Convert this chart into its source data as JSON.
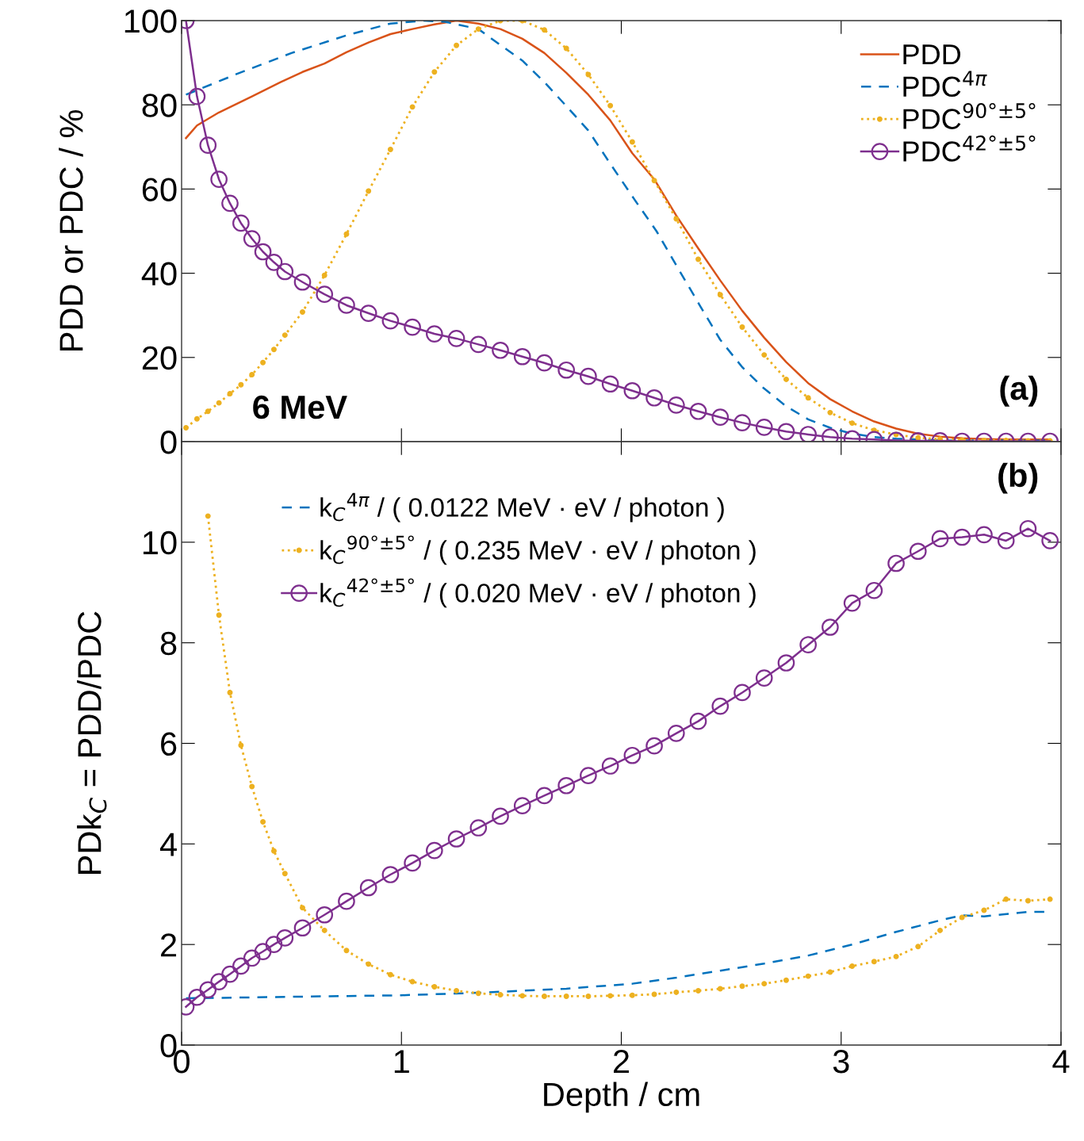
{
  "chart_data": [
    {
      "type": "line",
      "ylabel": "PDD or PDC / %",
      "xlim": [
        0,
        4
      ],
      "xticks": [
        0,
        1,
        2,
        3,
        4
      ],
      "ylim": [
        0,
        100
      ],
      "yticks": [
        0,
        20,
        40,
        60,
        80,
        100
      ],
      "tick_labels": "y",
      "grid": false,
      "legend": "top right",
      "annotations": [
        "(a)",
        "6 MeV"
      ],
      "series": [
        {
          "name": "PDD",
          "color": "#d95319",
          "line_style": "solid",
          "marker": "none",
          "x": [
            0.02,
            0.07,
            0.17,
            0.32,
            0.45,
            0.55,
            0.65,
            0.75,
            0.85,
            0.95,
            1.05,
            1.15,
            1.25,
            1.35,
            1.45,
            1.55,
            1.65,
            1.75,
            1.85,
            1.95,
            2.05,
            2.15,
            2.25,
            2.35,
            2.45,
            2.55,
            2.65,
            2.75,
            2.85,
            2.95,
            3.05,
            3.15,
            3.25,
            3.35,
            3.45,
            3.55,
            3.65,
            3.75,
            3.85,
            3.95
          ],
          "values": [
            72.1,
            75.1,
            78.2,
            82.0,
            85.4,
            87.8,
            89.8,
            92.5,
            94.8,
            96.8,
            98.0,
            99.1,
            100,
            99.3,
            98.0,
            95.7,
            92.3,
            87.6,
            82.4,
            76.3,
            68.5,
            62.3,
            53.7,
            45.9,
            38.3,
            31.1,
            24.7,
            18.9,
            13.9,
            10.1,
            7.2,
            4.8,
            3.1,
            1.9,
            1.2,
            0.8,
            0.6,
            0.5,
            0.5,
            0.5
          ]
        },
        {
          "name": "PDC$^{4π}$",
          "color": "#0072bd",
          "line_style": "dashed",
          "marker": "none",
          "x": [
            0.02,
            0.25,
            0.5,
            0.75,
            0.95,
            1.1,
            1.2,
            1.35,
            1.45,
            1.55,
            1.65,
            1.75,
            1.85,
            1.95,
            2.06,
            2.16,
            2.26,
            2.36,
            2.45,
            2.55,
            2.65,
            2.75,
            2.85,
            2.95,
            3.05,
            3.15,
            3.25,
            3.35,
            3.45,
            3.65,
            3.95
          ],
          "values": [
            82.4,
            87.3,
            92.3,
            96.5,
            99.3,
            100,
            99.7,
            98.0,
            94.2,
            90.5,
            85.4,
            79.7,
            73.9,
            66.0,
            57.5,
            50.0,
            41.0,
            32.1,
            24.2,
            17.7,
            12.6,
            8.4,
            5.3,
            3.3,
            1.9,
            1.1,
            0.7,
            0.5,
            0.3,
            0.3,
            0.3
          ]
        },
        {
          "name": "PDC$^{90°±5°}$",
          "color": "#edb120",
          "line_style": "dotted",
          "marker": "circle",
          "x": [
            0.02,
            0.07,
            0.12,
            0.17,
            0.22,
            0.27,
            0.32,
            0.37,
            0.42,
            0.47,
            0.55,
            0.65,
            0.75,
            0.85,
            0.95,
            1.05,
            1.15,
            1.25,
            1.35,
            1.45,
            1.55,
            1.65,
            1.75,
            1.85,
            1.95,
            2.05,
            2.15,
            2.25,
            2.35,
            2.45,
            2.55,
            2.65,
            2.75,
            2.85,
            2.95,
            3.05,
            3.15,
            3.25,
            3.35,
            3.45,
            3.55,
            3.65,
            3.75,
            3.85,
            3.95
          ],
          "values": [
            3.3,
            5.4,
            7.2,
            9.2,
            11.4,
            13.5,
            15.9,
            18.8,
            21.9,
            25.3,
            30.8,
            39.5,
            49.3,
            59.5,
            69.4,
            79.5,
            87.8,
            94.1,
            98.0,
            100.0,
            100.0,
            97.8,
            93.4,
            87.2,
            79.8,
            71.2,
            62.0,
            52.9,
            43.3,
            34.9,
            27.2,
            20.6,
            14.8,
            10.4,
            6.9,
            4.4,
            2.7,
            1.7,
            0.9,
            0.6,
            0.4,
            0.3,
            0.3,
            0.2,
            0.2
          ]
        },
        {
          "name": "PDC$^{42°±5°}$",
          "color": "#7e2f8e",
          "line_style": "solid",
          "marker": "circle",
          "x": [
            0.02,
            0.07,
            0.12,
            0.17,
            0.22,
            0.27,
            0.32,
            0.37,
            0.42,
            0.47,
            0.55,
            0.65,
            0.75,
            0.85,
            0.95,
            1.05,
            1.15,
            1.25,
            1.35,
            1.45,
            1.55,
            1.65,
            1.75,
            1.85,
            1.95,
            2.05,
            2.15,
            2.25,
            2.35,
            2.45,
            2.55,
            2.65,
            2.75,
            2.85,
            2.95,
            3.05,
            3.15,
            3.25,
            3.35,
            3.45,
            3.55,
            3.65,
            3.75,
            3.85,
            3.95
          ],
          "values": [
            100,
            82.0,
            70.4,
            62.3,
            56.6,
            51.9,
            48.2,
            45.1,
            42.6,
            40.4,
            37.9,
            35.0,
            32.4,
            30.5,
            28.7,
            27.2,
            25.6,
            24.5,
            23.1,
            21.7,
            20.2,
            18.7,
            17.0,
            15.5,
            13.7,
            12.1,
            10.4,
            8.7,
            7.2,
            5.8,
            4.5,
            3.4,
            2.4,
            1.7,
            1.1,
            0.7,
            0.5,
            0.3,
            0.2,
            0.2,
            0.1,
            0.1,
            0.1,
            0.1,
            0.1
          ]
        }
      ]
    },
    {
      "type": "line",
      "xlabel": "Depth / cm",
      "ylabel": "PDk$_{C}$ = PDD/PDC",
      "xlim": [
        0,
        4
      ],
      "xticks": [
        0,
        1,
        2,
        3,
        4
      ],
      "ylim": [
        0,
        12
      ],
      "yticks": [
        0,
        2,
        4,
        6,
        8,
        10
      ],
      "grid": false,
      "legend": "top left",
      "annotations": [
        "(b)"
      ],
      "series": [
        {
          "name": "k$_{C}$$^{4π}$ / ( 0.0122 MeV · eV / photon )",
          "color": "#0072bd",
          "line_style": "dashed",
          "marker": "none",
          "x": [
            0.02,
            0.5,
            1.0,
            1.35,
            1.75,
            2.05,
            2.25,
            2.45,
            2.65,
            2.85,
            3.05,
            3.25,
            3.45,
            3.55,
            3.65,
            3.85,
            3.95
          ],
          "values": [
            0.93,
            0.96,
            0.99,
            1.04,
            1.12,
            1.22,
            1.34,
            1.48,
            1.62,
            1.78,
            2.0,
            2.25,
            2.48,
            2.58,
            2.56,
            2.65,
            2.65
          ]
        },
        {
          "name": "k$_{C}$$^{90°±5°}$ / ( 0.235 MeV · eV / photon )",
          "color": "#edb120",
          "line_style": "dotted",
          "marker": "circle",
          "x": [
            0.12,
            0.17,
            0.22,
            0.27,
            0.32,
            0.37,
            0.42,
            0.47,
            0.55,
            0.65,
            0.75,
            0.85,
            0.95,
            1.05,
            1.15,
            1.25,
            1.35,
            1.45,
            1.55,
            1.65,
            1.75,
            1.85,
            1.95,
            2.05,
            2.15,
            2.25,
            2.35,
            2.45,
            2.55,
            2.65,
            2.75,
            2.85,
            2.95,
            3.05,
            3.15,
            3.25,
            3.35,
            3.45,
            3.55,
            3.65,
            3.75,
            3.85,
            3.95
          ],
          "values": [
            10.52,
            8.55,
            7.01,
            5.96,
            5.14,
            4.44,
            3.86,
            3.41,
            2.73,
            2.28,
            1.88,
            1.61,
            1.4,
            1.26,
            1.16,
            1.08,
            1.03,
            1.0,
            0.98,
            0.97,
            0.97,
            0.97,
            0.98,
            0.99,
            1.01,
            1.05,
            1.08,
            1.12,
            1.17,
            1.22,
            1.29,
            1.37,
            1.45,
            1.57,
            1.66,
            1.76,
            1.96,
            2.28,
            2.54,
            2.68,
            2.9,
            2.87,
            2.9
          ]
        },
        {
          "name": "k$_{C}$$^{42°±5°}$ / ( 0.020 MeV · eV / photon )",
          "color": "#7e2f8e",
          "line_style": "solid",
          "marker": "circle",
          "x": [
            0.02,
            0.07,
            0.12,
            0.17,
            0.22,
            0.27,
            0.32,
            0.37,
            0.42,
            0.47,
            0.55,
            0.65,
            0.75,
            0.85,
            0.95,
            1.05,
            1.15,
            1.25,
            1.35,
            1.45,
            1.55,
            1.65,
            1.75,
            1.85,
            1.95,
            2.05,
            2.15,
            2.25,
            2.35,
            2.45,
            2.55,
            2.65,
            2.75,
            2.85,
            2.95,
            3.05,
            3.15,
            3.25,
            3.35,
            3.45,
            3.55,
            3.65,
            3.75,
            3.85,
            3.95
          ],
          "values": [
            0.76,
            0.95,
            1.1,
            1.26,
            1.41,
            1.57,
            1.73,
            1.86,
            2.0,
            2.13,
            2.33,
            2.59,
            2.86,
            3.13,
            3.39,
            3.62,
            3.87,
            4.1,
            4.32,
            4.55,
            4.76,
            4.96,
            5.16,
            5.36,
            5.55,
            5.76,
            5.95,
            6.2,
            6.44,
            6.74,
            7.01,
            7.3,
            7.6,
            7.96,
            8.31,
            8.79,
            9.04,
            9.58,
            9.82,
            10.07,
            10.1,
            10.15,
            10.03,
            10.27,
            10.03
          ]
        }
      ]
    }
  ]
}
